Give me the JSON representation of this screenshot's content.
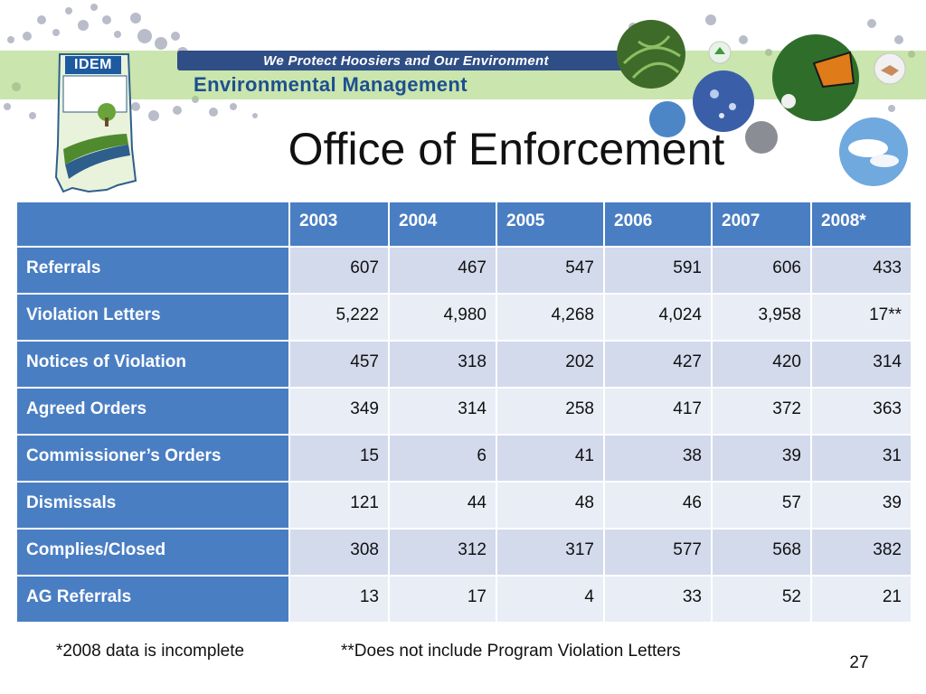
{
  "header": {
    "brand": "IDEM",
    "tagline": "We Protect Hoosiers and Our Environment",
    "agency": "Environmental Management"
  },
  "slide": {
    "title": "Office of Enforcement",
    "page_number": "27"
  },
  "colors": {
    "header_blue": "#4a7ec3",
    "row_light": "#e9edf6",
    "row_mid": "#d2daec",
    "banner_green": "#8cc04a"
  },
  "icons": [
    "indiana-state-outline-icon",
    "fern-photo",
    "water-photo",
    "butterfly-photo",
    "handshake-icon",
    "recycle-icon",
    "sky-photo"
  ],
  "table": {
    "corner": "",
    "columns": [
      "2003",
      "2004",
      "2005",
      "2006",
      "2007",
      "2008*"
    ],
    "rows": [
      {
        "label": "Referrals",
        "values": [
          "607",
          "467",
          "547",
          "591",
          "606",
          "433"
        ]
      },
      {
        "label": "Violation Letters",
        "values": [
          "5,222",
          "4,980",
          "4,268",
          "4,024",
          "3,958",
          "17**"
        ]
      },
      {
        "label": "Notices of Violation",
        "values": [
          "457",
          "318",
          "202",
          "427",
          "420",
          "314"
        ]
      },
      {
        "label": "Agreed Orders",
        "values": [
          "349",
          "314",
          "258",
          "417",
          "372",
          "363"
        ]
      },
      {
        "label": "Commissioner’s Orders",
        "values": [
          "15",
          "6",
          "41",
          "38",
          "39",
          "31"
        ]
      },
      {
        "label": "Dismissals",
        "values": [
          "121",
          "44",
          "48",
          "46",
          "57",
          "39"
        ]
      },
      {
        "label": "Complies/Closed",
        "values": [
          "308",
          "312",
          "317",
          "577",
          "568",
          "382"
        ]
      },
      {
        "label": "AG Referrals",
        "values": [
          "13",
          "17",
          "4",
          "33",
          "52",
          "21"
        ]
      }
    ]
  },
  "footnotes": {
    "incomplete": "*2008 data is incomplete",
    "program": "**Does not include Program Violation Letters"
  }
}
